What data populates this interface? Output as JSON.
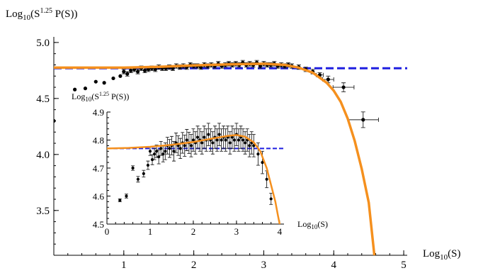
{
  "chart_data": [
    {
      "id": "main",
      "type": "scatter",
      "title": "",
      "xlabel_main": "Log",
      "xlabel_sub": "10",
      "xlabel_tail": "(S)",
      "ylabel_main": "Log",
      "ylabel_sub": "10",
      "ylabel_mid": "(S",
      "ylabel_sup": "1.25",
      "ylabel_tail": " P(S))",
      "xlim": [
        0,
        5.05
      ],
      "ylim": [
        3.1,
        5.05
      ],
      "x_ticks": [
        1,
        2,
        3,
        4,
        5
      ],
      "y_ticks": [
        3.5,
        4.0,
        4.5,
        5.0
      ],
      "x_tick_labels": [
        "1",
        "2",
        "3",
        "4",
        "5"
      ],
      "y_tick_labels": [
        "3.5",
        "4.0",
        "4.5",
        "5.0"
      ],
      "grid": false,
      "reference_line": {
        "name": "",
        "y": 4.77,
        "color": "#1f1fe0",
        "style": "dashed"
      },
      "fit_curve": {
        "name": "",
        "color": "#f5901e",
        "points": [
          [
            0,
            4.775
          ],
          [
            0.5,
            4.775
          ],
          [
            1,
            4.775
          ],
          [
            1.5,
            4.783
          ],
          [
            2,
            4.795
          ],
          [
            2.5,
            4.805
          ],
          [
            3,
            4.81
          ],
          [
            3.3,
            4.8
          ],
          [
            3.5,
            4.775
          ],
          [
            3.7,
            4.73
          ],
          [
            3.9,
            4.64
          ],
          [
            4.0,
            4.57
          ],
          [
            4.1,
            4.47
          ],
          [
            4.2,
            4.32
          ],
          [
            4.3,
            4.12
          ],
          [
            4.4,
            3.87
          ],
          [
            4.5,
            3.57
          ],
          [
            4.58,
            3.1
          ]
        ]
      },
      "series": [
        {
          "name": "",
          "x": [
            0.0,
            0.3,
            0.45,
            0.6,
            0.72,
            0.85,
            0.95,
            1.0,
            1.05,
            1.1,
            1.15,
            1.2,
            1.25,
            1.3,
            1.35,
            1.4,
            1.45,
            1.5,
            1.55,
            1.6,
            1.65,
            1.7,
            1.75,
            1.8,
            1.85,
            1.9,
            1.95,
            2.0,
            2.05,
            2.1,
            2.15,
            2.2,
            2.25,
            2.3,
            2.35,
            2.4,
            2.45,
            2.5,
            2.55,
            2.6,
            2.65,
            2.7,
            2.75,
            2.8,
            2.85,
            2.9,
            2.95,
            3.0,
            3.05,
            3.1,
            3.15,
            3.2,
            3.25,
            3.3,
            3.35,
            3.4,
            3.5,
            3.6,
            3.7,
            3.8,
            3.92,
            4.14,
            4.42
          ],
          "y": [
            4.3,
            4.58,
            4.59,
            4.65,
            4.64,
            4.68,
            4.7,
            4.74,
            4.72,
            4.75,
            4.76,
            4.74,
            4.77,
            4.75,
            4.76,
            4.77,
            4.76,
            4.78,
            4.77,
            4.77,
            4.78,
            4.77,
            4.79,
            4.78,
            4.79,
            4.78,
            4.8,
            4.79,
            4.79,
            4.78,
            4.8,
            4.79,
            4.8,
            4.79,
            4.81,
            4.79,
            4.8,
            4.81,
            4.8,
            4.81,
            4.8,
            4.82,
            4.8,
            4.81,
            4.8,
            4.82,
            4.79,
            4.81,
            4.8,
            4.8,
            4.81,
            4.79,
            4.8,
            4.79,
            4.8,
            4.79,
            4.78,
            4.76,
            4.74,
            4.71,
            4.67,
            4.6,
            4.31
          ],
          "xerr": [
            0,
            0,
            0,
            0,
            0,
            0,
            0,
            0,
            0,
            0,
            0,
            0,
            0,
            0,
            0,
            0,
            0,
            0,
            0,
            0,
            0,
            0,
            0,
            0,
            0,
            0,
            0,
            0,
            0,
            0,
            0,
            0,
            0,
            0,
            0,
            0,
            0,
            0,
            0,
            0,
            0,
            0,
            0,
            0,
            0,
            0,
            0,
            0,
            0,
            0,
            0,
            0,
            0,
            0,
            0,
            0,
            0,
            0,
            0,
            0.05,
            0.08,
            0.15,
            0.22
          ],
          "yerr": [
            0,
            0,
            0,
            0,
            0,
            0,
            0,
            0.02,
            0.02,
            0.02,
            0.02,
            0.02,
            0.02,
            0.02,
            0.02,
            0.02,
            0.02,
            0.02,
            0.02,
            0.02,
            0.02,
            0.02,
            0.02,
            0.02,
            0.02,
            0.02,
            0.02,
            0.02,
            0.02,
            0.02,
            0.02,
            0.02,
            0.02,
            0.02,
            0.02,
            0.02,
            0.02,
            0.02,
            0.02,
            0.02,
            0.02,
            0.02,
            0.02,
            0.02,
            0.02,
            0.02,
            0.02,
            0.02,
            0.02,
            0.02,
            0.02,
            0.02,
            0.02,
            0.02,
            0.02,
            0.02,
            0.02,
            0.02,
            0.02,
            0.02,
            0.03,
            0.04,
            0.07
          ]
        }
      ]
    },
    {
      "id": "inset",
      "type": "scatter",
      "title": "",
      "xlabel_main": "Log",
      "xlabel_sub": "10",
      "xlabel_tail": "(S)",
      "ylabel_main": "Log",
      "ylabel_sub": "10",
      "ylabel_mid": "(S",
      "ylabel_sup": "1.25",
      "ylabel_tail": " P(S))",
      "xlim": [
        0,
        4.1
      ],
      "ylim": [
        4.5,
        4.9
      ],
      "x_ticks": [
        0,
        1,
        2,
        3,
        4
      ],
      "y_ticks": [
        4.5,
        4.6,
        4.7,
        4.8,
        4.9
      ],
      "x_tick_labels": [
        "0",
        "1",
        "2",
        "3",
        "4"
      ],
      "y_tick_labels": [
        "4.5",
        "4.6",
        "4.7",
        "4.8",
        "4.9"
      ],
      "grid": false,
      "reference_line": {
        "name": "",
        "y": 4.77,
        "color": "#1f1fe0",
        "style": "dashed"
      },
      "fit_curve": {
        "name": "",
        "color": "#f5901e",
        "points": [
          [
            0,
            4.77
          ],
          [
            0.5,
            4.772
          ],
          [
            1,
            4.776
          ],
          [
            1.5,
            4.783
          ],
          [
            2,
            4.793
          ],
          [
            2.5,
            4.807
          ],
          [
            2.8,
            4.815
          ],
          [
            3.0,
            4.818
          ],
          [
            3.2,
            4.812
          ],
          [
            3.4,
            4.792
          ],
          [
            3.55,
            4.76
          ],
          [
            3.7,
            4.7
          ],
          [
            3.8,
            4.64
          ],
          [
            3.9,
            4.58
          ],
          [
            3.96,
            4.53
          ],
          [
            4.0,
            4.5
          ]
        ]
      },
      "series": [
        {
          "name": "",
          "x": [
            0.3,
            0.45,
            0.6,
            0.72,
            0.85,
            0.95,
            1.0,
            1.05,
            1.1,
            1.15,
            1.2,
            1.25,
            1.3,
            1.35,
            1.4,
            1.45,
            1.5,
            1.55,
            1.6,
            1.65,
            1.7,
            1.75,
            1.8,
            1.85,
            1.9,
            1.95,
            2.0,
            2.05,
            2.1,
            2.15,
            2.2,
            2.25,
            2.3,
            2.35,
            2.4,
            2.45,
            2.5,
            2.55,
            2.6,
            2.65,
            2.7,
            2.75,
            2.8,
            2.85,
            2.9,
            2.95,
            3.0,
            3.05,
            3.1,
            3.15,
            3.2,
            3.25,
            3.3,
            3.35,
            3.4,
            3.5,
            3.6,
            3.7,
            3.8
          ],
          "y": [
            4.585,
            4.6,
            4.7,
            4.66,
            4.68,
            4.71,
            4.76,
            4.73,
            4.75,
            4.76,
            4.74,
            4.77,
            4.75,
            4.76,
            4.78,
            4.77,
            4.78,
            4.76,
            4.79,
            4.78,
            4.77,
            4.79,
            4.78,
            4.8,
            4.79,
            4.78,
            4.8,
            4.79,
            4.81,
            4.8,
            4.79,
            4.81,
            4.8,
            4.82,
            4.8,
            4.79,
            4.81,
            4.8,
            4.82,
            4.8,
            4.81,
            4.8,
            4.81,
            4.79,
            4.81,
            4.8,
            4.82,
            4.8,
            4.81,
            4.8,
            4.79,
            4.8,
            4.78,
            4.79,
            4.78,
            4.75,
            4.72,
            4.66,
            4.59
          ],
          "yerr": [
            0.005,
            0.007,
            0.008,
            0.01,
            0.012,
            0.015,
            0.015,
            0.018,
            0.02,
            0.022,
            0.025,
            0.025,
            0.028,
            0.03,
            0.03,
            0.032,
            0.033,
            0.035,
            0.035,
            0.035,
            0.036,
            0.037,
            0.038,
            0.038,
            0.038,
            0.04,
            0.04,
            0.04,
            0.04,
            0.04,
            0.04,
            0.04,
            0.04,
            0.04,
            0.04,
            0.04,
            0.04,
            0.04,
            0.04,
            0.04,
            0.04,
            0.04,
            0.04,
            0.04,
            0.04,
            0.04,
            0.04,
            0.04,
            0.04,
            0.04,
            0.04,
            0.04,
            0.04,
            0.04,
            0.04,
            0.04,
            0.04,
            0.03,
            0.02
          ]
        }
      ]
    }
  ]
}
